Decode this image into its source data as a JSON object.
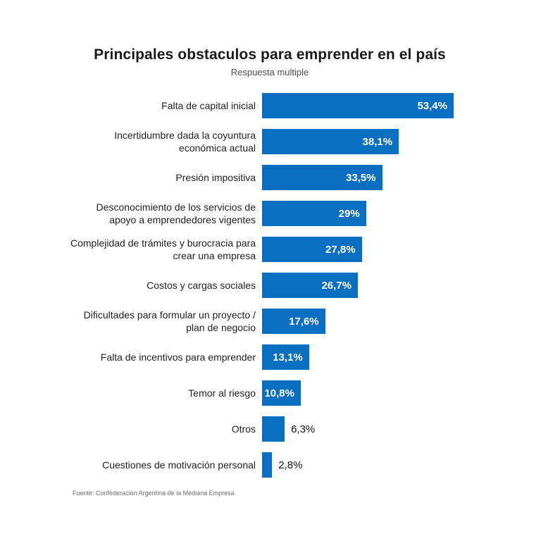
{
  "header": {
    "title": "Principales obstaculos para emprender en el país",
    "subtitle": "Respuesta multiple"
  },
  "footer": {
    "source": "Fuente: Confederación Argentina de la Mediana Empresa"
  },
  "colors": {
    "bar": "#0b6fc1",
    "value_label_inside": "#ffffff",
    "value_label_outside": "#111111"
  },
  "chart_data": {
    "type": "bar",
    "orientation": "horizontal",
    "title": "Principales obstaculos para emprender en el país",
    "subtitle": "Respuesta multiple",
    "xlabel": "",
    "ylabel": "",
    "grid": false,
    "legend": false,
    "xlim": [
      0,
      53.4
    ],
    "categories": [
      "Falta de capital inicial",
      "Incertidumbre dada la coyuntura económica actual",
      "Presión impositiva",
      "Desconocimiento de los servicios de apoyo a emprendedores vigentes",
      "Complejidad de trámites y burocracia para crear una empresa",
      "Costos y cargas sociales",
      "Dificultades para formular un proyecto / plan de negocio",
      "Falta de incentivos para emprender",
      "Temor al riesgo",
      "Otros",
      "Cuestiones de motivación personal"
    ],
    "values": [
      53.4,
      38.1,
      33.5,
      29,
      27.8,
      26.7,
      17.6,
      13.1,
      10.8,
      6.3,
      2.8
    ],
    "value_labels": [
      "53,4%",
      "38,1%",
      "33,5%",
      "29%",
      "27,8%",
      "26,7%",
      "17,6%",
      "13,1%",
      "10,8%",
      "6,3%",
      "2,8%"
    ],
    "inside_label_min_value": 10,
    "source": "Fuente: Confederación Argentina de la Mediana Empresa"
  }
}
